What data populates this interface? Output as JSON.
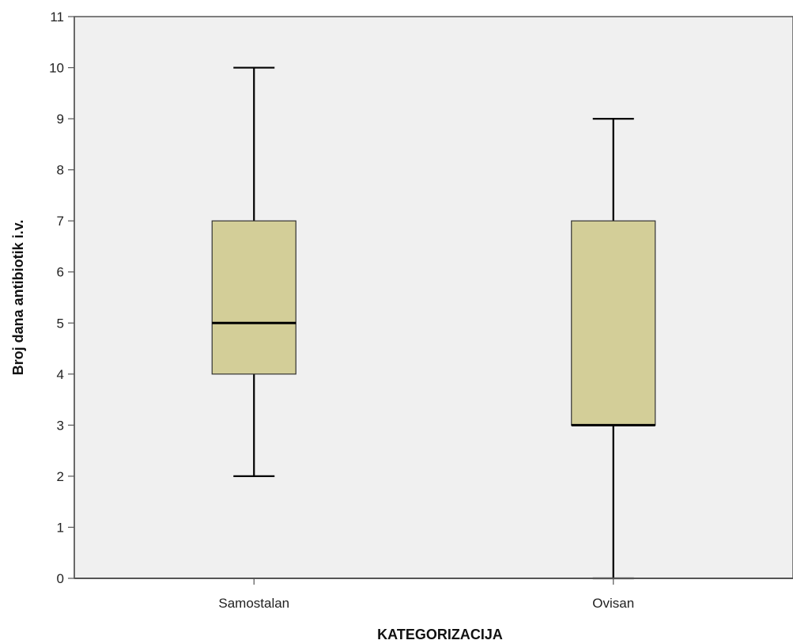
{
  "chart_data": {
    "type": "boxplot",
    "title": "",
    "xlabel": "KATEGORIZACIJA",
    "ylabel": "Broj dana antibiotik i.v.",
    "ylim": [
      0,
      11
    ],
    "yticks": [
      0,
      1,
      2,
      3,
      4,
      5,
      6,
      7,
      8,
      9,
      10,
      11
    ],
    "grid": false,
    "categories": [
      "Samostalan",
      "Ovisan"
    ],
    "boxes": [
      {
        "category": "Samostalan",
        "min": 2,
        "q1": 4,
        "median": 5,
        "q3": 7,
        "max": 10
      },
      {
        "category": "Ovisan",
        "min": 0,
        "q1": 3,
        "median": 3,
        "q3": 7,
        "max": 9
      }
    ],
    "colors": {
      "plot_background": "#f0f0f0",
      "box_fill": "#d3ce98",
      "stroke": "#000000",
      "axis": "#555555"
    }
  }
}
